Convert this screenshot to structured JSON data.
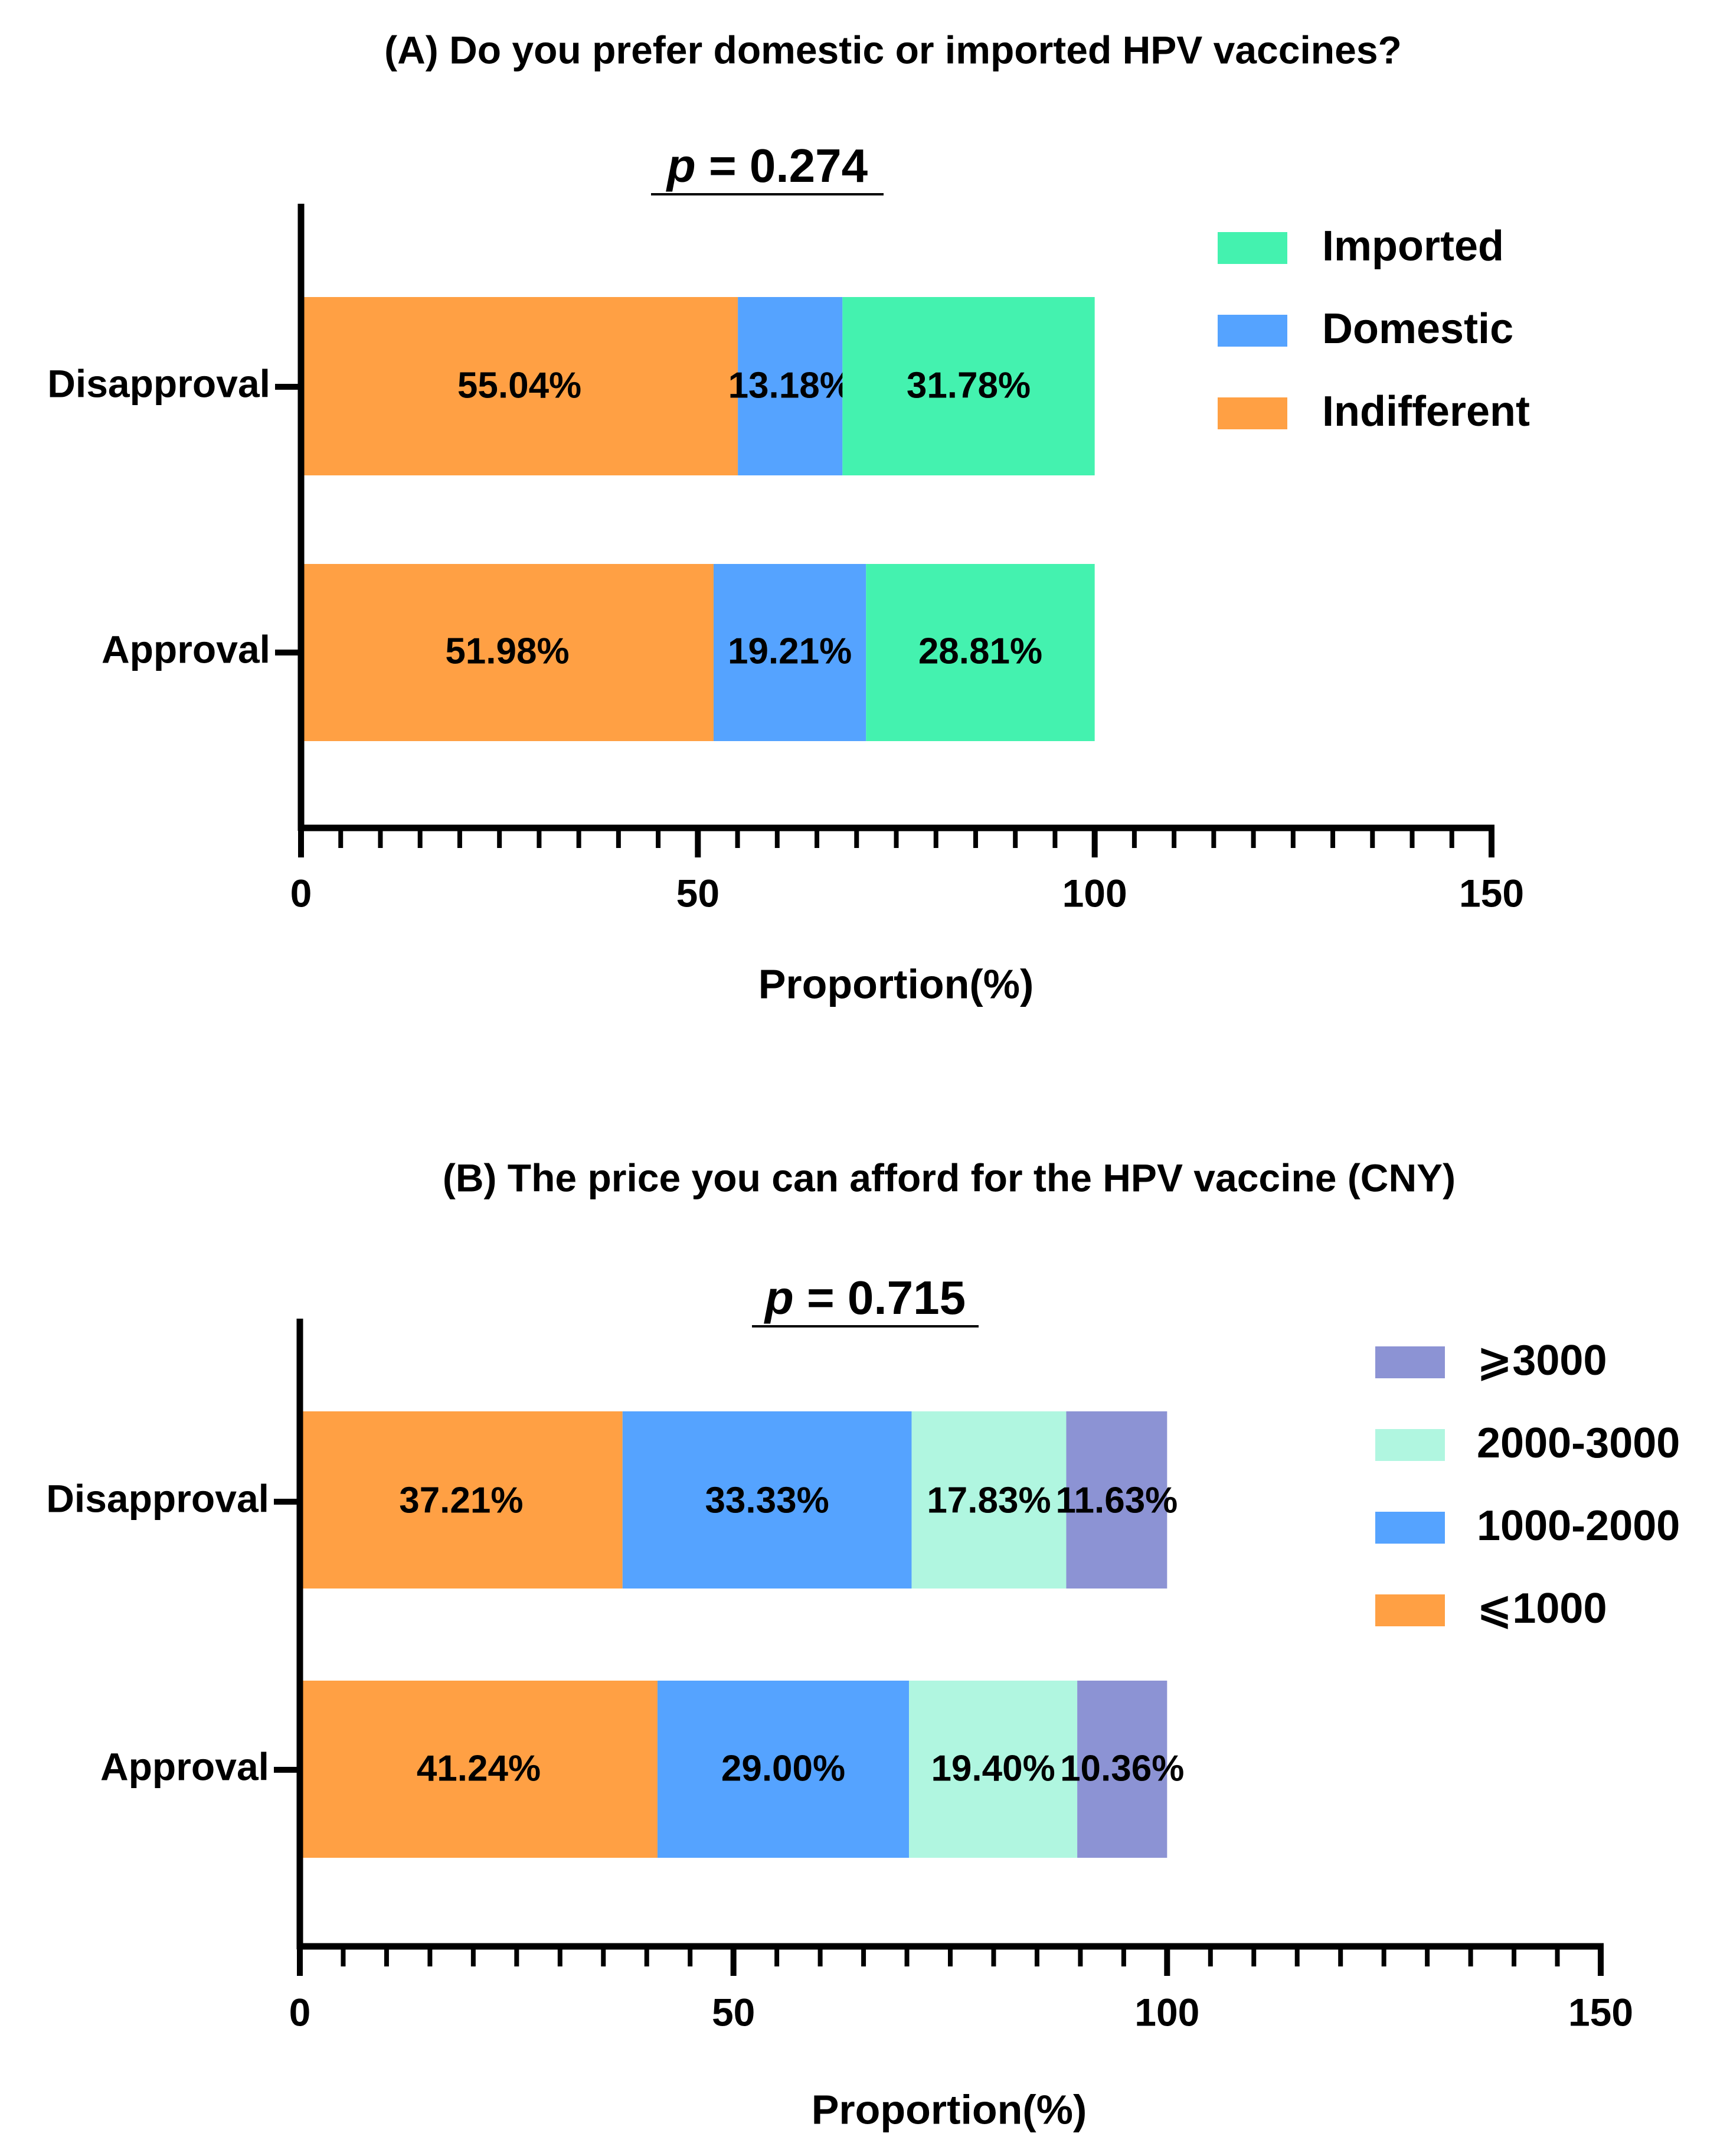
{
  "chart_data": [
    {
      "type": "bar",
      "orientation": "horizontal",
      "stacked": true,
      "title": "(A) Do you prefer domestic or imported HPV vaccines?",
      "p_prefix": "p",
      "p_suffix": " = 0.274",
      "categories": [
        "Disapproval",
        "Approval"
      ],
      "series": [
        {
          "name": "Indifferent",
          "color": "#ffa044",
          "values": [
            55.04,
            51.98
          ],
          "labels": [
            "55.04%",
            "51.98%"
          ]
        },
        {
          "name": "Domestic",
          "color": "#55a3ff",
          "values": [
            13.18,
            19.21
          ],
          "labels": [
            "13.18%",
            "19.21%"
          ]
        },
        {
          "name": "Imported",
          "color": "#44f2af",
          "values": [
            31.78,
            28.81
          ],
          "labels": [
            "31.78%",
            "28.81%"
          ]
        }
      ],
      "legend": [
        "Imported",
        "Domestic",
        "Indifferent"
      ],
      "legend_position": "top-right",
      "xlabel": "Proportion(%)",
      "xlim": [
        0,
        150
      ],
      "major_ticks": [
        0,
        50,
        100,
        150
      ],
      "minor_step": 5
    },
    {
      "type": "bar",
      "orientation": "horizontal",
      "stacked": true,
      "title": "(B) The price you can afford for the HPV vaccine (CNY)",
      "p_prefix": "p",
      "p_suffix": " = 0.715",
      "categories": [
        "Disapproval",
        "Approval"
      ],
      "series": [
        {
          "name": "⩽1000",
          "color": "#ffa044",
          "values": [
            37.21,
            41.24
          ],
          "labels": [
            "37.21%",
            "41.24%"
          ]
        },
        {
          "name": "1000-2000",
          "color": "#55a3ff",
          "values": [
            33.33,
            29.0
          ],
          "labels": [
            "33.33%",
            "29.00%"
          ]
        },
        {
          "name": "2000-3000",
          "color": "#b0f6e0",
          "values": [
            17.83,
            19.4
          ],
          "labels": [
            "17.83%",
            "19.40%"
          ]
        },
        {
          "name": "⩾3000",
          "color": "#8c93d4",
          "values": [
            11.63,
            10.36
          ],
          "labels": [
            "11.63%",
            "10.36%"
          ]
        }
      ],
      "legend": [
        "⩾3000",
        "2000-3000",
        "1000-2000",
        "⩽1000"
      ],
      "legend_position": "top-right",
      "xlabel": "Proportion(%)",
      "xlim": [
        0,
        150
      ],
      "major_ticks": [
        0,
        50,
        100,
        150
      ],
      "minor_step": 5
    }
  ]
}
